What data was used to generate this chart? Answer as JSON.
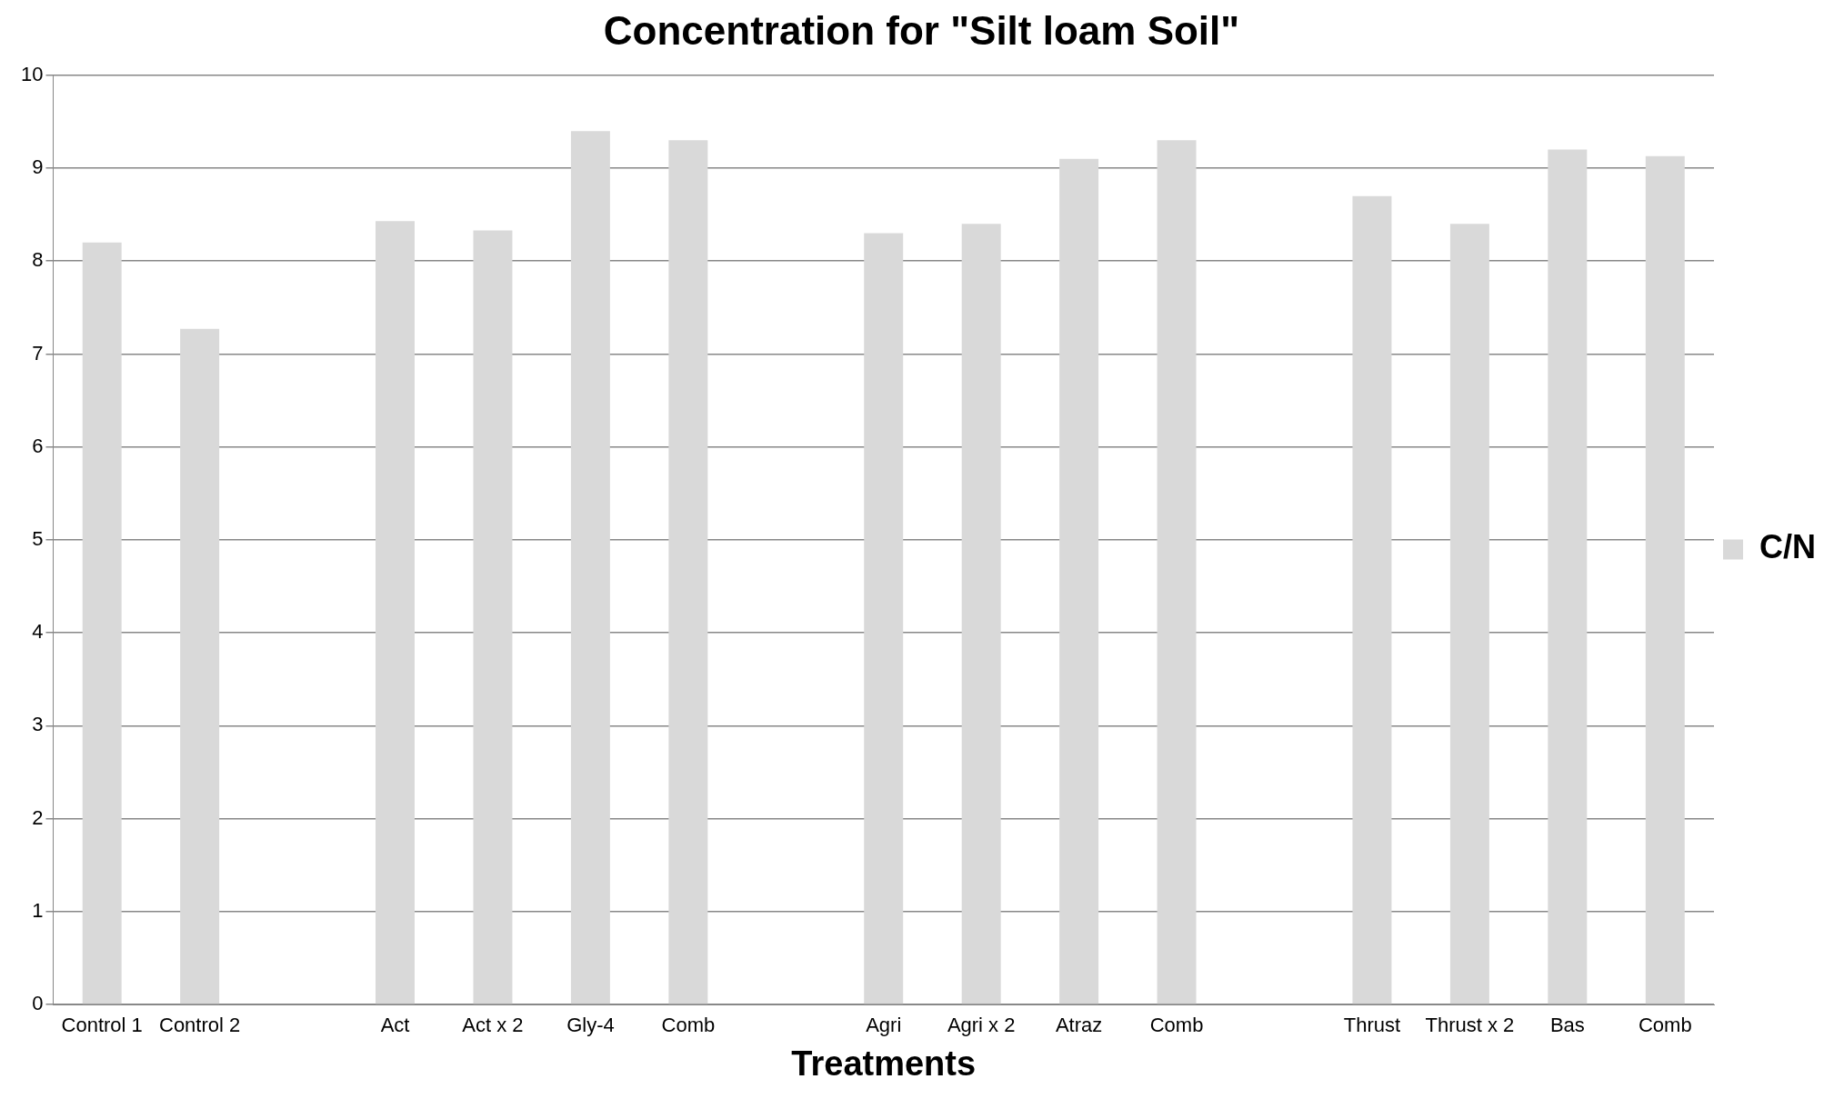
{
  "chart_data": {
    "type": "bar",
    "title": "Concentration for \"Silt loam Soil\"",
    "xlabel": "Treatments",
    "categories": [
      "Control 1",
      "Control 2",
      null,
      "Act",
      "Act x 2",
      "Gly-4",
      "Comb",
      null,
      "Agri",
      "Agri x 2",
      "Atraz",
      "Comb",
      null,
      "Thrust",
      "Thrust x 2",
      "Bas",
      "Comb"
    ],
    "series": [
      {
        "name": "C/N",
        "color": "#d9d9d9",
        "values": [
          8.2,
          7.27,
          null,
          8.43,
          8.33,
          9.4,
          9.3,
          null,
          8.3,
          8.4,
          9.1,
          9.3,
          null,
          8.7,
          8.4,
          9.2,
          9.13
        ]
      }
    ],
    "ylim": [
      0,
      10
    ],
    "yticks": [
      0,
      1,
      2,
      3,
      4,
      5,
      6,
      7,
      8,
      9,
      10
    ],
    "grid": "y",
    "legend": "right"
  }
}
